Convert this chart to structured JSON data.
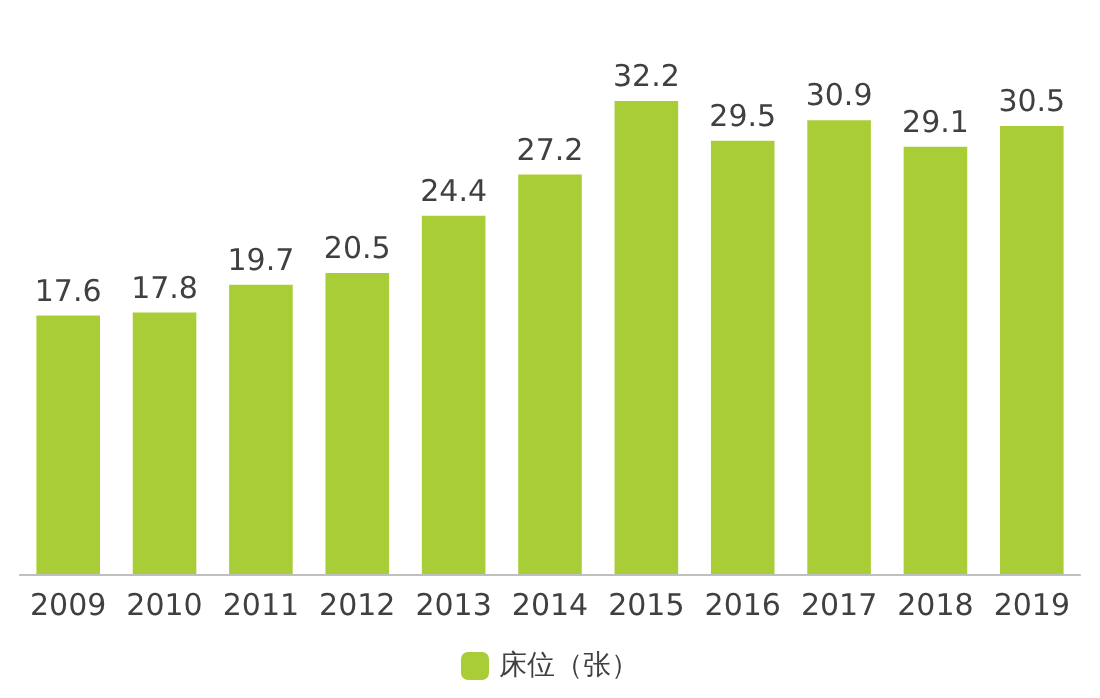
{
  "chart_data": {
    "type": "bar",
    "categories": [
      "2009",
      "2010",
      "2011",
      "2012",
      "2013",
      "2014",
      "2015",
      "2016",
      "2017",
      "2018",
      "2019"
    ],
    "series": [
      {
        "name": "床位（张）",
        "color": "#a9cd37",
        "values": [
          17.6,
          17.8,
          19.7,
          20.5,
          24.4,
          27.2,
          32.2,
          29.5,
          30.9,
          29.1,
          30.5
        ]
      }
    ],
    "data_labels": true,
    "legend": "bottom"
  }
}
